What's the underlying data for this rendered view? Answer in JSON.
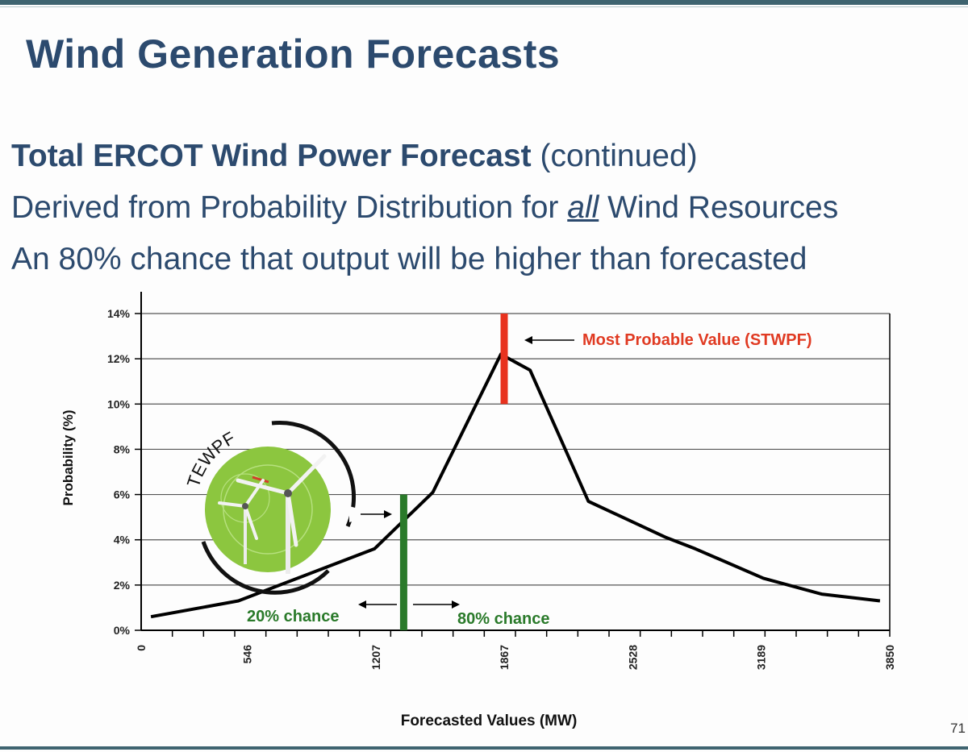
{
  "slide": {
    "title": "Wind Generation Forecasts",
    "line1_bold": "Total ERCOT Wind Power Forecast",
    "line1_rest": " (continued)",
    "line2_pre": "Derived from Probability Distribution for ",
    "line2_em": "all",
    "line2_post": " Wind Resources",
    "line3": "An 80% chance that output will be higher than forecasted",
    "page_number": "71"
  },
  "logo": {
    "text": "TEWPF"
  },
  "colors": {
    "title": "#2c4a6e",
    "curve": "#000000",
    "red_marker": "#e8321e",
    "green_marker": "#2a7a2a",
    "logo_green": "#8cc63f"
  },
  "chart_data": {
    "type": "line",
    "xlabel": "Forecasted Values (MW)",
    "ylabel": "Probability (%)",
    "xlim": [
      0,
      3850
    ],
    "ylim": [
      0,
      14
    ],
    "x_ticks": [
      "0",
      "546",
      "1207",
      "1867",
      "2528",
      "3189",
      "3850"
    ],
    "y_ticks": [
      "0%",
      "2%",
      "4%",
      "6%",
      "8%",
      "10%",
      "12%",
      "14%"
    ],
    "y_tick_values": [
      0,
      2,
      4,
      6,
      8,
      10,
      12,
      14
    ],
    "series": [
      {
        "name": "Total ERCOT wind power forecast distribution",
        "x": [
          50,
          500,
          1200,
          1500,
          1850,
          2000,
          2300,
          2700,
          2850,
          3200,
          3500,
          3800
        ],
        "y": [
          0.6,
          1.3,
          3.6,
          6.1,
          12.2,
          11.5,
          5.7,
          4.1,
          3.6,
          2.3,
          1.6,
          1.3
        ]
      }
    ],
    "markers": {
      "most_probable": {
        "x": 1867,
        "y_from": 10,
        "y_to": 14,
        "label": "Most Probable Value (STWPF)"
      },
      "eighty_percent": {
        "x": 1350,
        "y_from": 0,
        "y_to": 6
      },
      "left_label": "20% chance",
      "right_label": "80% chance"
    }
  }
}
